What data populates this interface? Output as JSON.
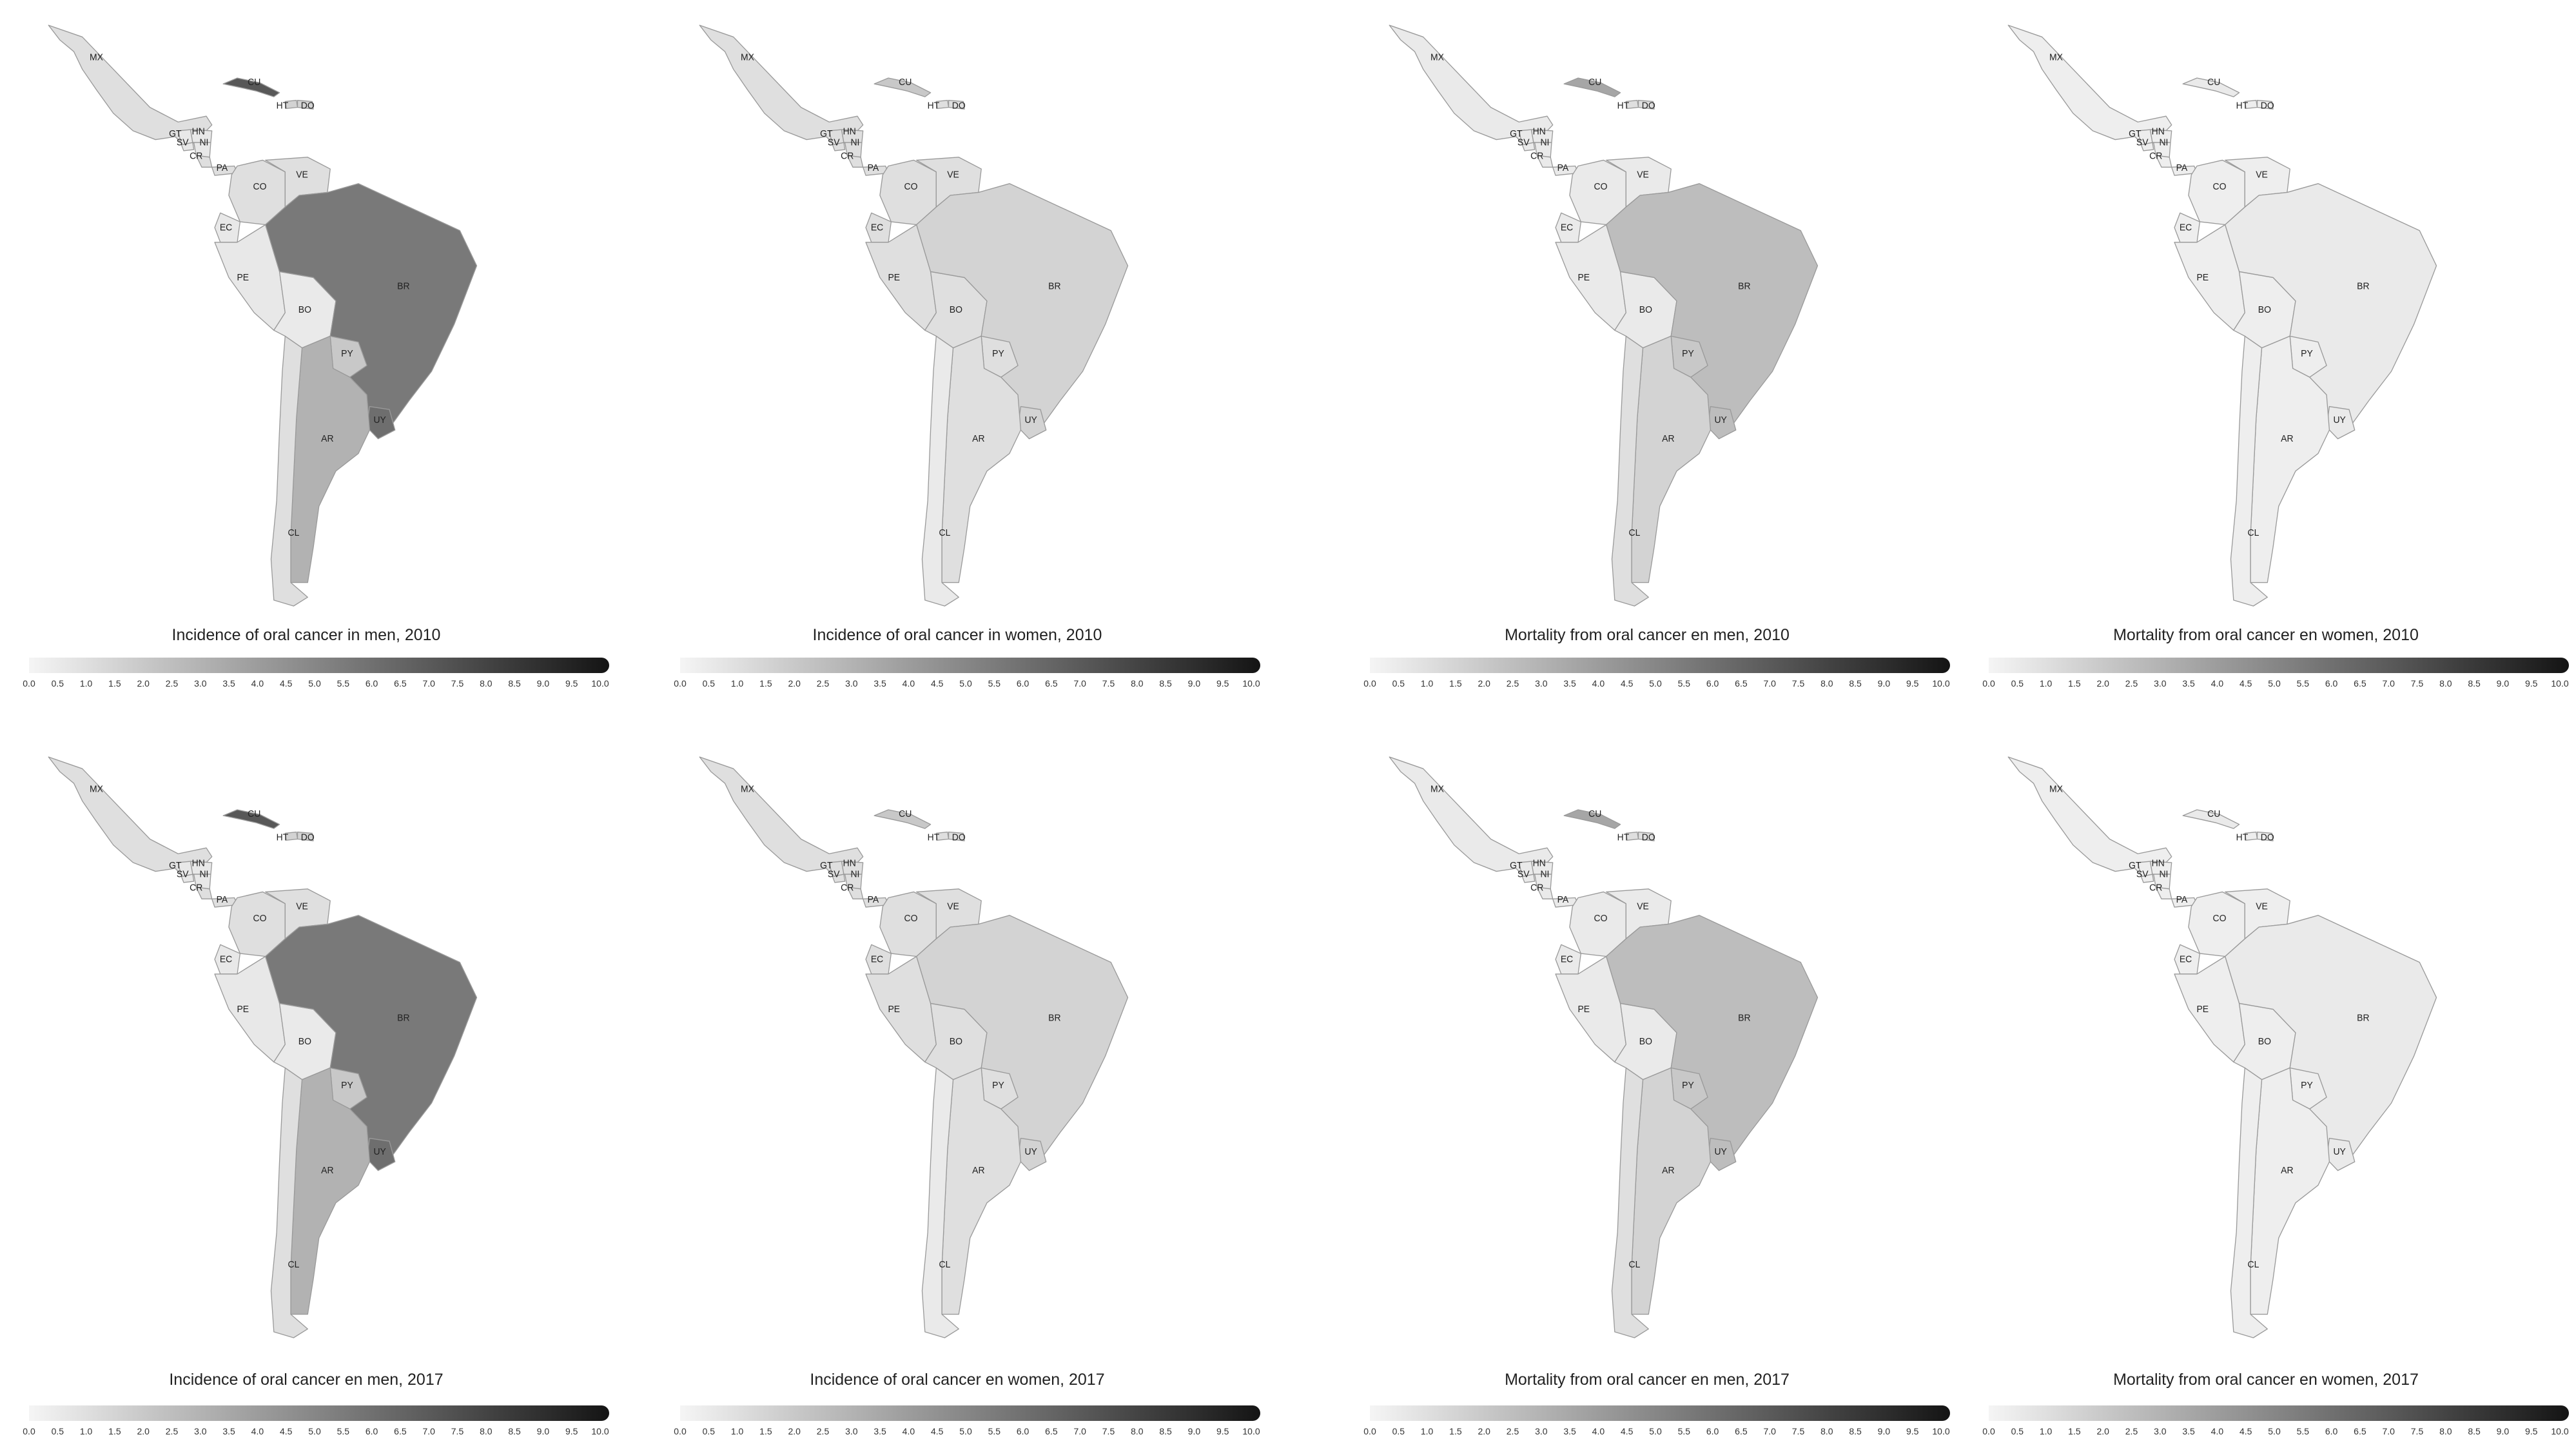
{
  "colors": {
    "low": "#f5f5f5",
    "high": "#141414",
    "border": "#9a9a9a",
    "text": "#222222"
  },
  "legend_ticks": [
    "0.0",
    "0.5",
    "1.0",
    "1.5",
    "2.0",
    "2.5",
    "3.0",
    "3.5",
    "4.0",
    "4.5",
    "5.0",
    "5.5",
    "6.0",
    "6.5",
    "7.0",
    "7.5",
    "8.0",
    "8.5",
    "9.0",
    "9.5",
    "10.0"
  ],
  "scale_range": [
    0,
    10
  ],
  "chart_data": [
    {
      "type": "choropleth",
      "title": "Incidence of oral cancer in men, 2010",
      "values": {
        "MX": 1.0,
        "CU": 7.0,
        "HT": 1.5,
        "DO": 1.5,
        "GT": 0.6,
        "SV": 0.6,
        "HN": 0.6,
        "NI": 0.6,
        "CR": 1.0,
        "PA": 1.0,
        "CO": 1.0,
        "VE": 1.0,
        "EC": 0.6,
        "PE": 0.6,
        "BO": 0.5,
        "BR": 5.5,
        "PY": 2.0,
        "UY": 6.0,
        "AR": 3.0,
        "CL": 1.0
      }
    },
    {
      "type": "choropleth",
      "title": "Incidence of oral cancer in women, 2010",
      "values": {
        "MX": 1.0,
        "CU": 2.0,
        "HT": 1.0,
        "DO": 1.0,
        "GT": 1.0,
        "SV": 1.0,
        "HN": 1.0,
        "NI": 1.0,
        "CR": 1.0,
        "PA": 1.0,
        "CO": 1.0,
        "VE": 1.0,
        "EC": 1.0,
        "PE": 1.0,
        "BO": 1.0,
        "BR": 1.5,
        "PY": 1.0,
        "UY": 1.5,
        "AR": 1.0,
        "CL": 0.5
      }
    },
    {
      "type": "choropleth",
      "title": "Mortality from oral cancer en men, 2010",
      "values": {
        "MX": 0.5,
        "CU": 3.5,
        "HT": 1.0,
        "DO": 1.0,
        "GT": 0.5,
        "SV": 0.5,
        "HN": 0.5,
        "NI": 0.5,
        "CR": 0.5,
        "PA": 0.5,
        "CO": 0.5,
        "VE": 0.5,
        "EC": 0.5,
        "PE": 0.5,
        "BO": 0.5,
        "BR": 2.5,
        "PY": 2.0,
        "UY": 2.5,
        "AR": 1.5,
        "CL": 1.0
      }
    },
    {
      "type": "choropleth",
      "title": "Mortality from oral cancer en women, 2010",
      "values": {
        "MX": 0.3,
        "CU": 0.5,
        "HT": 0.3,
        "DO": 0.3,
        "GT": 0.3,
        "SV": 0.3,
        "HN": 0.3,
        "NI": 0.3,
        "CR": 0.3,
        "PA": 0.3,
        "CO": 0.3,
        "VE": 0.3,
        "EC": 0.3,
        "PE": 0.3,
        "BO": 0.3,
        "BR": 0.5,
        "PY": 0.3,
        "UY": 0.5,
        "AR": 0.3,
        "CL": 0.3
      }
    },
    {
      "type": "choropleth",
      "title": "Incidence of oral cancer en men, 2017",
      "values": {
        "MX": 1.0,
        "CU": 7.0,
        "HT": 1.5,
        "DO": 1.5,
        "GT": 0.6,
        "SV": 0.6,
        "HN": 0.6,
        "NI": 0.6,
        "CR": 1.0,
        "PA": 1.0,
        "CO": 1.0,
        "VE": 1.0,
        "EC": 0.6,
        "PE": 0.6,
        "BO": 0.5,
        "BR": 5.5,
        "PY": 2.0,
        "UY": 6.0,
        "AR": 3.0,
        "CL": 1.0
      }
    },
    {
      "type": "choropleth",
      "title": "Incidence of oral cancer en women, 2017",
      "values": {
        "MX": 1.0,
        "CU": 2.0,
        "HT": 1.0,
        "DO": 1.0,
        "GT": 1.0,
        "SV": 1.0,
        "HN": 1.0,
        "NI": 1.0,
        "CR": 1.0,
        "PA": 1.0,
        "CO": 1.0,
        "VE": 1.0,
        "EC": 1.0,
        "PE": 1.0,
        "BO": 1.0,
        "BR": 1.5,
        "PY": 1.0,
        "UY": 1.5,
        "AR": 1.0,
        "CL": 0.5
      }
    },
    {
      "type": "choropleth",
      "title": "Mortality from oral cancer en men, 2017",
      "values": {
        "MX": 0.5,
        "CU": 3.5,
        "HT": 1.0,
        "DO": 1.0,
        "GT": 0.5,
        "SV": 0.5,
        "HN": 0.5,
        "NI": 0.5,
        "CR": 0.5,
        "PA": 0.5,
        "CO": 0.5,
        "VE": 0.5,
        "EC": 0.5,
        "PE": 0.5,
        "BO": 0.5,
        "BR": 2.5,
        "PY": 2.0,
        "UY": 2.5,
        "AR": 1.5,
        "CL": 1.0
      }
    },
    {
      "type": "choropleth",
      "title": "Mortality from oral cancer en women, 2017",
      "values": {
        "MX": 0.3,
        "CU": 0.5,
        "HT": 0.3,
        "DO": 0.3,
        "GT": 0.3,
        "SV": 0.3,
        "HN": 0.3,
        "NI": 0.3,
        "CR": 0.3,
        "PA": 0.3,
        "CO": 0.3,
        "VE": 0.3,
        "EC": 0.3,
        "PE": 0.3,
        "BO": 0.3,
        "BR": 0.5,
        "PY": 0.3,
        "UY": 0.5,
        "AR": 0.3,
        "CL": 0.3
      }
    }
  ]
}
